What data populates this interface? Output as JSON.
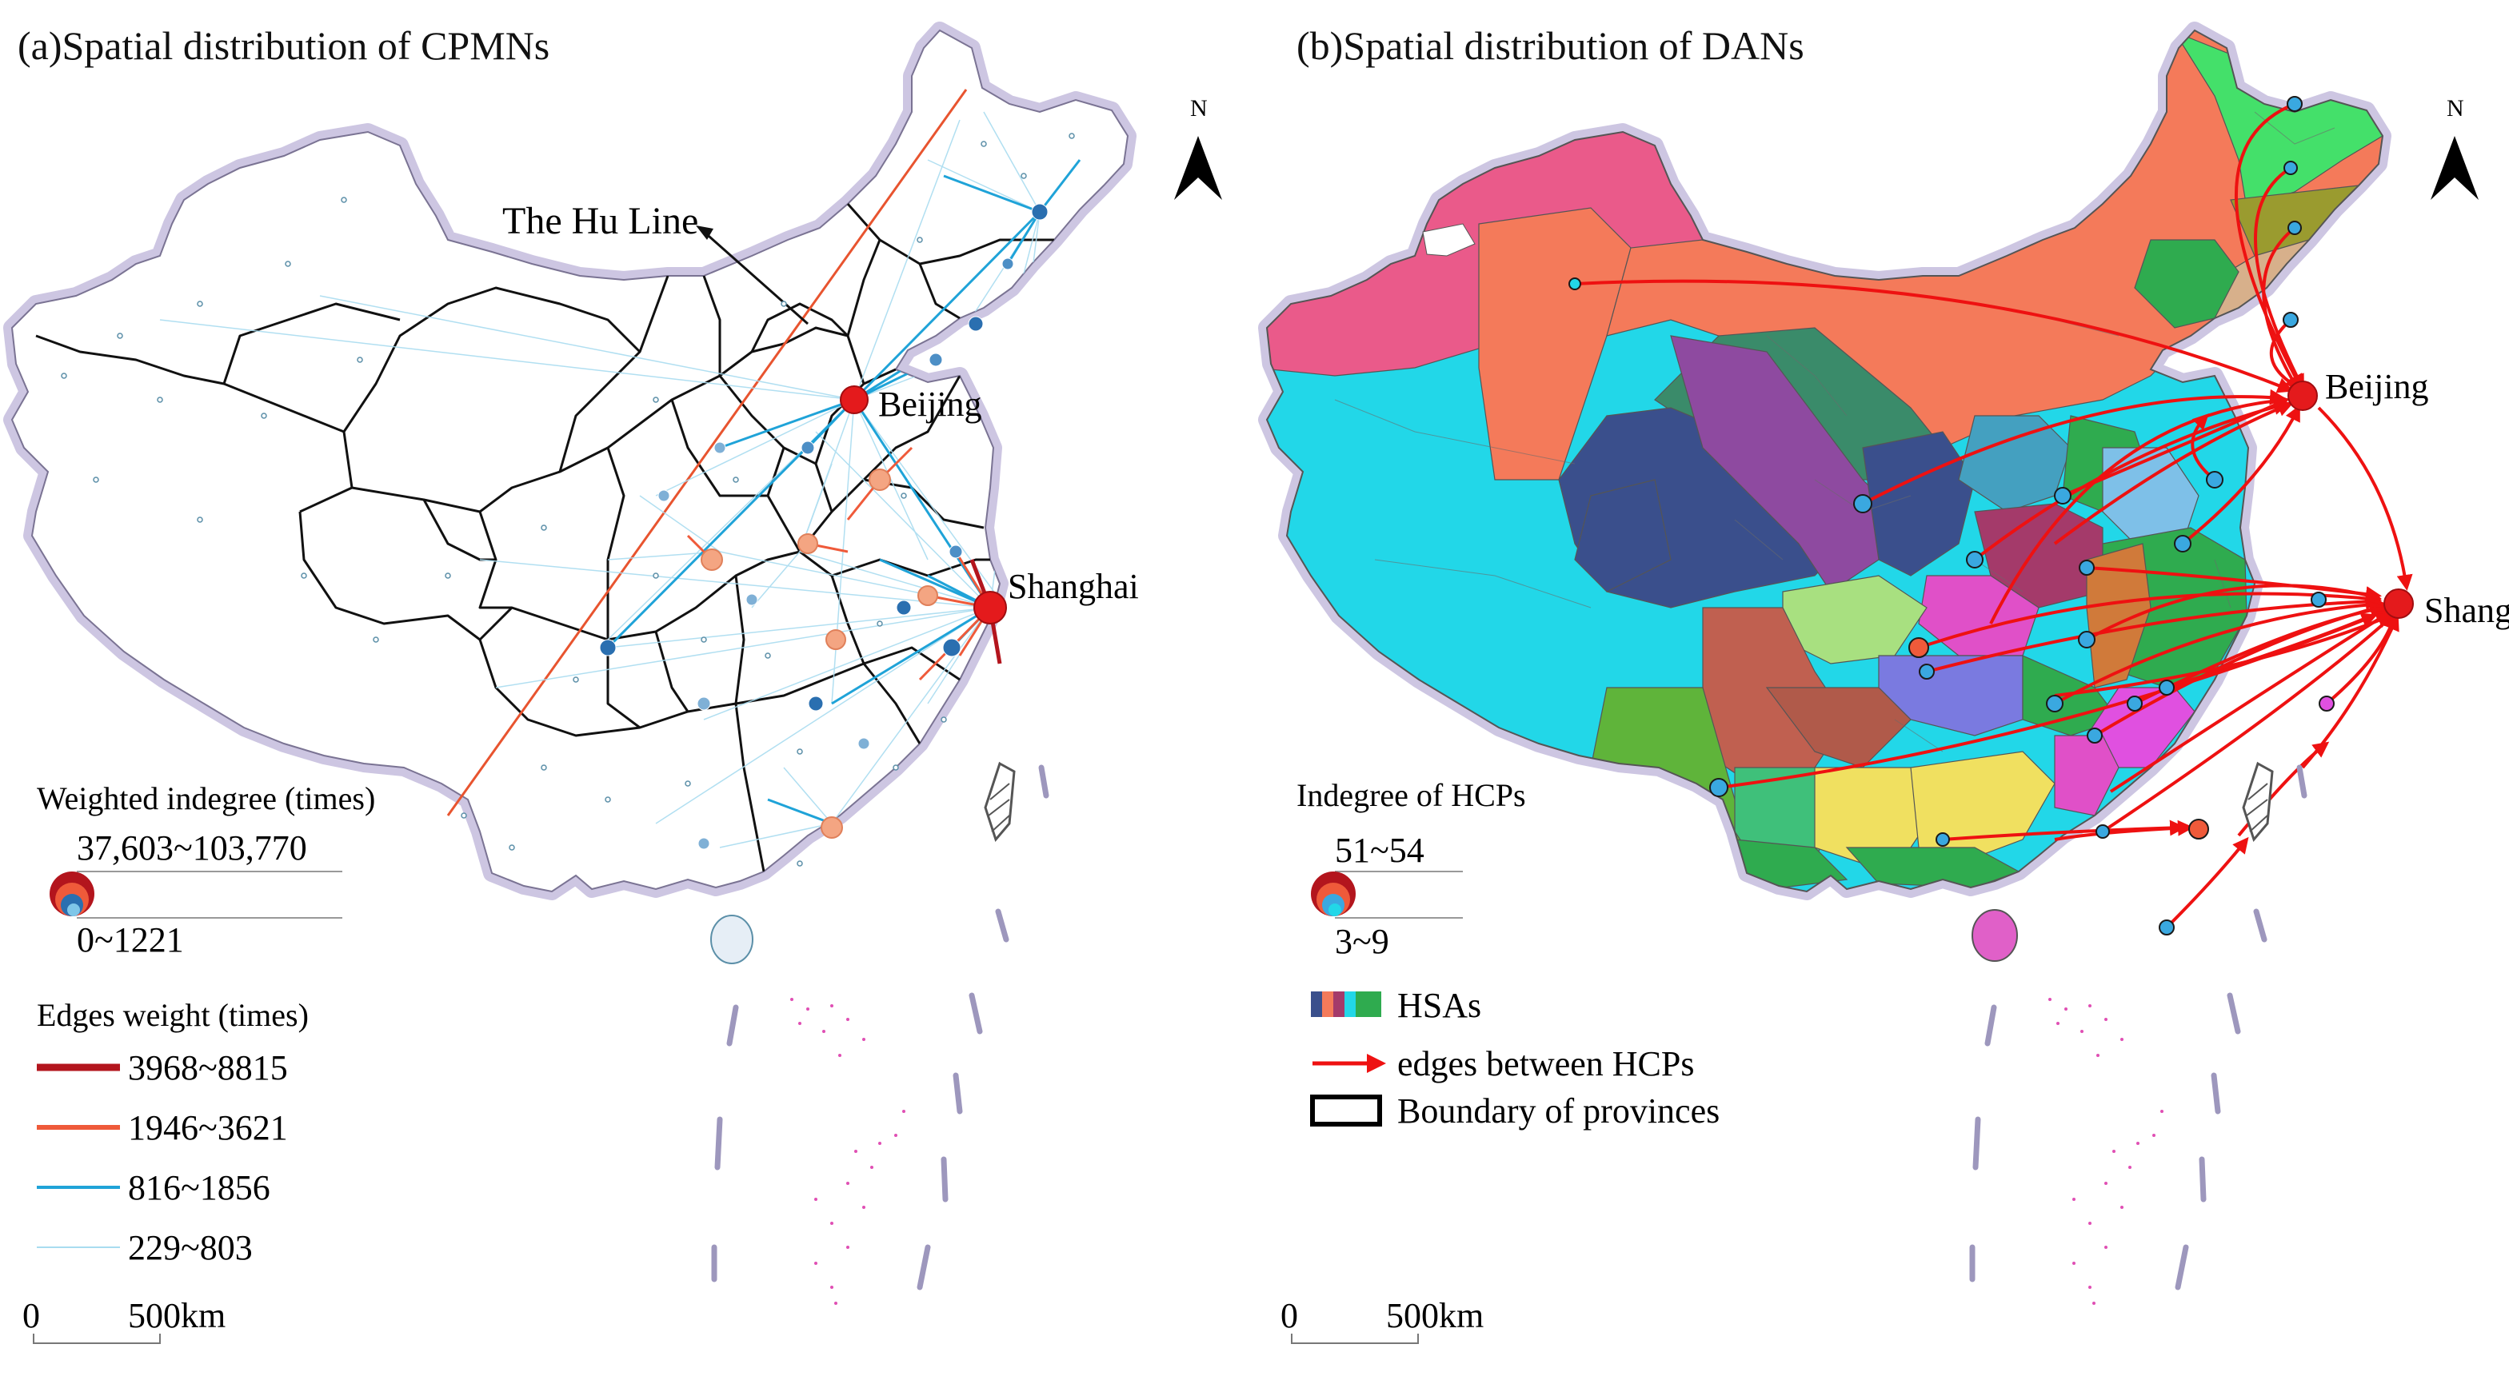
{
  "panel_a": {
    "title": "(a)Spatial distribution of CPMNs",
    "north_label": "N",
    "hu_line_label": "The Hu Line",
    "cities": {
      "beijing": "Beijing",
      "shanghai": "Shanghai"
    },
    "legend": {
      "indegree_title": "Weighted indegree (times)",
      "indegree_max": "37,603~103,770",
      "indegree_min": "0~1221",
      "edges_title": "Edges weight (times)",
      "edges": [
        {
          "label": "3968~8815",
          "color": "#b3151d"
        },
        {
          "label": "1946~3621",
          "color": "#ef5a3a"
        },
        {
          "label": "816~1856",
          "color": "#1fa3d8"
        },
        {
          "label": "229~803",
          "color": "#a9dcf0"
        }
      ]
    },
    "scale": {
      "zero": "0",
      "distance": "500km"
    }
  },
  "panel_b": {
    "title": "(b)Spatial distribution of DANs",
    "north_label": "N",
    "cities": {
      "beijing": "Beijing",
      "shanghai": "Shanghai"
    },
    "legend": {
      "indegree_title": "Indegree of HCPs",
      "indegree_max": "51~54",
      "indegree_min": "3~9",
      "hsa_label": "HSAs",
      "edges_label": "edges between HCPs",
      "boundary_label": "Boundary of provinces"
    },
    "scale": {
      "zero": "0",
      "distance": "500km"
    }
  },
  "colors": {
    "hub_red": "#e41a1c",
    "node_orange": "#f4a582",
    "node_blue": "#2b7bb9",
    "edge_red": "#ee1111",
    "hu_line": "#e8542f",
    "halo": "#c9c3de"
  }
}
